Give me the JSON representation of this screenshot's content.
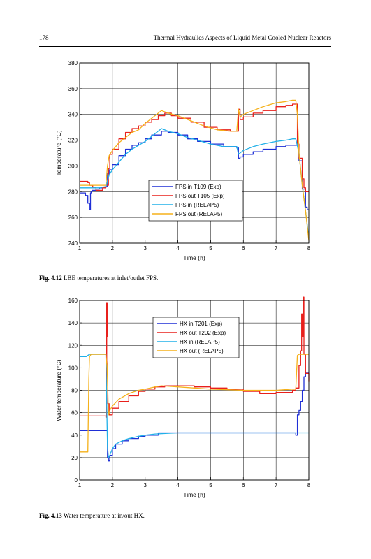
{
  "header": {
    "page_number": "178",
    "running_title": "Thermal Hydraulics Aspects of Liquid Metal Cooled Nuclear Reactors"
  },
  "captions": [
    {
      "label": "Fig. 4.12",
      "text": "LBE temperatures at inlet/outlet FPS."
    },
    {
      "label": "Fig. 4.13",
      "text": "Water temperature at in/out HX."
    }
  ],
  "chart_data": [
    {
      "type": "line",
      "xlabel": "Time (h)",
      "ylabel": "Temperature (°C)",
      "xlim": [
        1,
        8
      ],
      "ylim": [
        240,
        380
      ],
      "xticks": [
        1,
        2,
        3,
        4,
        5,
        6,
        7,
        8
      ],
      "yticks": [
        240,
        260,
        280,
        300,
        320,
        340,
        360,
        380
      ],
      "grid": true,
      "legend_position": "lower-center",
      "series": [
        {
          "name": "FPS in  T109 (Exp)",
          "color": "#1f2fd6",
          "step": true,
          "x": [
            1.0,
            1.1,
            1.18,
            1.25,
            1.3,
            1.33,
            1.35,
            1.38,
            1.5,
            1.6,
            1.8,
            1.85,
            1.9,
            2.0,
            2.2,
            2.4,
            2.6,
            2.8,
            3.0,
            3.2,
            3.5,
            3.7,
            4.0,
            4.3,
            4.6,
            5.0,
            5.4,
            5.8,
            5.85,
            5.9,
            6.0,
            6.3,
            6.6,
            7.0,
            7.3,
            7.6,
            7.7,
            7.8,
            7.9,
            7.95,
            8.0
          ],
          "y": [
            279,
            279,
            277,
            271,
            266,
            279,
            280,
            281,
            282,
            283,
            284,
            294,
            297,
            301,
            308,
            313,
            316,
            318,
            321,
            324,
            327,
            326,
            324,
            321,
            319,
            317,
            315,
            314,
            306,
            307,
            309,
            311,
            313,
            315,
            316,
            316,
            304,
            282,
            268,
            266,
            266
          ]
        },
        {
          "name": "FPS out T105 (Exp)",
          "color": "#e8201c",
          "step": true,
          "x": [
            1.0,
            1.15,
            1.25,
            1.3,
            1.4,
            1.5,
            1.6,
            1.7,
            1.8,
            1.88,
            1.92,
            2.0,
            2.2,
            2.4,
            2.6,
            2.8,
            3.0,
            3.2,
            3.4,
            3.6,
            3.8,
            4.0,
            4.4,
            4.8,
            5.2,
            5.6,
            5.8,
            5.85,
            5.9,
            6.0,
            6.3,
            6.6,
            7.0,
            7.3,
            7.5,
            7.6,
            7.65,
            7.7,
            7.8,
            7.85,
            7.9,
            8.0
          ],
          "y": [
            288,
            288,
            287,
            285,
            283,
            281,
            281,
            283,
            285,
            298,
            309,
            313,
            321,
            326,
            329,
            331,
            334,
            336,
            339,
            341,
            339,
            337,
            334,
            330,
            328,
            327,
            327,
            344,
            336,
            338,
            341,
            343,
            346,
            347,
            348,
            348,
            317,
            306,
            290,
            283,
            280,
            280
          ]
        },
        {
          "name": "FPS in   (RELAP5)",
          "color": "#20b0e8",
          "step": false,
          "x": [
            1.0,
            1.3,
            1.6,
            1.8,
            1.85,
            1.9,
            2.0,
            2.2,
            2.4,
            2.6,
            2.8,
            3.0,
            3.2,
            3.5,
            3.7,
            4.0,
            4.3,
            4.6,
            5.0,
            5.4,
            5.8,
            5.85,
            5.9,
            6.0,
            6.3,
            6.6,
            7.0,
            7.3,
            7.5,
            7.6,
            7.7,
            7.8,
            7.9,
            8.0
          ],
          "y": [
            283,
            283,
            283,
            284,
            288,
            293,
            297,
            303,
            309,
            313,
            316,
            319,
            323,
            329,
            327,
            325,
            322,
            320,
            317,
            315,
            315,
            309,
            310,
            312,
            315,
            317,
            319,
            320,
            321,
            321,
            310,
            285,
            265,
            244
          ]
        },
        {
          "name": "FPS out (RELAP5)",
          "color": "#f5b11a",
          "step": false,
          "x": [
            1.0,
            1.3,
            1.6,
            1.8,
            1.85,
            1.9,
            2.0,
            2.2,
            2.4,
            2.6,
            2.8,
            3.0,
            3.2,
            3.4,
            3.5,
            3.7,
            4.0,
            4.4,
            4.8,
            5.2,
            5.6,
            5.8,
            5.85,
            5.9,
            6.0,
            6.3,
            6.6,
            7.0,
            7.3,
            7.5,
            7.6,
            7.65,
            7.7,
            7.8,
            7.9,
            8.0
          ],
          "y": [
            285,
            285,
            285,
            285,
            300,
            308,
            312,
            318,
            322,
            326,
            328,
            333,
            337,
            341,
            343,
            341,
            339,
            335,
            331,
            328,
            327,
            327,
            344,
            338,
            340,
            343,
            346,
            349,
            350,
            351,
            351,
            340,
            310,
            285,
            265,
            242
          ]
        }
      ]
    },
    {
      "type": "line",
      "xlabel": "Time (h)",
      "ylabel": "Water temperature (°C)",
      "xlim": [
        1,
        8
      ],
      "ylim": [
        0,
        160
      ],
      "xticks": [
        1,
        2,
        3,
        4,
        5,
        6,
        7,
        8
      ],
      "yticks": [
        0,
        20,
        40,
        60,
        80,
        100,
        120,
        140,
        160
      ],
      "grid": true,
      "legend_position": "top-center",
      "series": [
        {
          "name": "HX in   T201 (Exp)",
          "color": "#1f2fd6",
          "step": true,
          "x": [
            1.0,
            1.5,
            1.8,
            1.85,
            1.88,
            1.92,
            2.0,
            2.1,
            2.3,
            2.5,
            2.8,
            3.0,
            3.3,
            3.4,
            4.0,
            5.0,
            6.0,
            7.0,
            7.5,
            7.6,
            7.65,
            7.7,
            7.75,
            7.8,
            7.85,
            7.9,
            8.0
          ],
          "y": [
            44,
            44,
            44,
            20,
            17,
            22,
            28,
            32,
            35,
            37,
            39,
            40,
            40,
            42,
            42,
            42,
            42,
            42,
            42,
            40,
            58,
            62,
            70,
            80,
            92,
            96,
            96
          ]
        },
        {
          "name": "HX out  T202 (Exp)",
          "color": "#e8201c",
          "step": true,
          "x": [
            1.0,
            1.5,
            1.8,
            1.82,
            1.84,
            1.86,
            1.9,
            2.0,
            2.2,
            2.5,
            2.8,
            3.0,
            3.3,
            3.6,
            4.0,
            4.5,
            5.0,
            5.5,
            6.0,
            6.5,
            7.0,
            7.3,
            7.5,
            7.6,
            7.7,
            7.75,
            7.78,
            7.8,
            7.83,
            7.85,
            7.9,
            8.0
          ],
          "y": [
            57,
            57,
            56,
            158,
            128,
            68,
            58,
            64,
            70,
            75,
            79,
            81,
            83,
            84,
            84,
            83,
            82,
            81,
            79,
            77,
            78,
            78,
            80,
            82,
            102,
            115,
            148,
            128,
            163,
            112,
            95,
            88
          ]
        },
        {
          "name": "HX in    (RELAP5)",
          "color": "#20b0e8",
          "step": false,
          "x": [
            1.0,
            1.2,
            1.25,
            1.3,
            1.35,
            1.8,
            1.85,
            1.88,
            1.92,
            2.0,
            2.1,
            2.3,
            2.5,
            2.8,
            3.0,
            3.3,
            4.0,
            5.0,
            6.0,
            7.0,
            7.5,
            7.6,
            7.7,
            8.0
          ],
          "y": [
            110,
            110,
            111,
            112,
            112,
            112,
            30,
            20,
            22,
            28,
            32,
            35,
            37,
            39,
            40,
            41,
            42,
            42,
            42,
            42,
            42,
            42,
            42,
            42
          ]
        },
        {
          "name": "HX out (RELAP5)",
          "color": "#f5b11a",
          "step": false,
          "x": [
            1.0,
            1.2,
            1.25,
            1.28,
            1.3,
            1.35,
            1.8,
            1.84,
            1.88,
            1.92,
            2.0,
            2.2,
            2.5,
            2.8,
            3.0,
            3.3,
            3.5,
            4.0,
            5.0,
            6.0,
            7.0,
            7.5,
            7.6,
            7.65,
            7.7,
            8.0
          ],
          "y": [
            25,
            25,
            25,
            90,
            110,
            112,
            112,
            100,
            58,
            62,
            66,
            72,
            77,
            80,
            81,
            83,
            84,
            83,
            81,
            80,
            80,
            81,
            81,
            111,
            112,
            112
          ]
        }
      ]
    }
  ]
}
